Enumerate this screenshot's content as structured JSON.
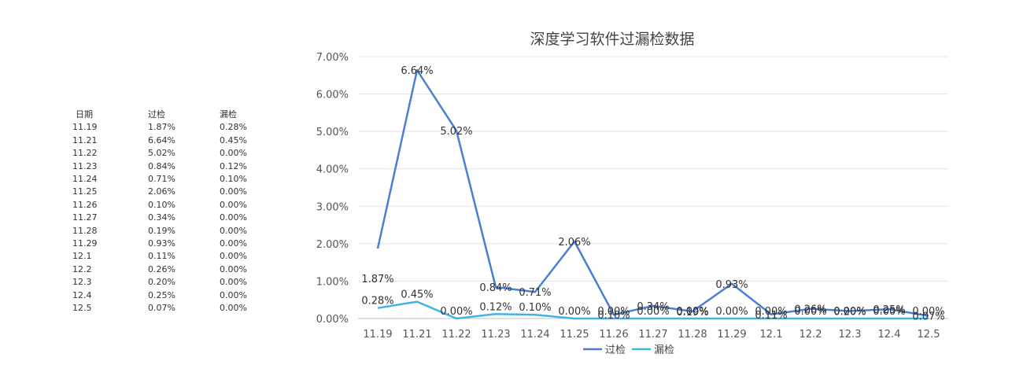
{
  "table": {
    "headers": [
      "日期",
      "过检",
      "漏检"
    ],
    "rows": [
      [
        "11.19",
        "1.87%",
        "0.28%"
      ],
      [
        "11.21",
        "6.64%",
        "0.45%"
      ],
      [
        "11.22",
        "5.02%",
        "0.00%"
      ],
      [
        "11.23",
        "0.84%",
        "0.12%"
      ],
      [
        "11.24",
        "0.71%",
        "0.10%"
      ],
      [
        "11.25",
        "2.06%",
        "0.00%"
      ],
      [
        "11.26",
        "0.10%",
        "0.00%"
      ],
      [
        "11.27",
        "0.34%",
        "0.00%"
      ],
      [
        "11.28",
        "0.19%",
        "0.00%"
      ],
      [
        "11.29",
        "0.93%",
        "0.00%"
      ],
      [
        "12.1",
        "0.11%",
        "0.00%"
      ],
      [
        "12.2",
        "0.26%",
        "0.00%"
      ],
      [
        "12.3",
        "0.20%",
        "0.00%"
      ],
      [
        "12.4",
        "0.25%",
        "0.00%"
      ],
      [
        "12.5",
        "0.07%",
        "0.00%"
      ]
    ]
  },
  "chart_data": {
    "type": "line",
    "title": "深度学习软件过漏检数据",
    "categories": [
      "11.19",
      "11.21",
      "11.22",
      "11.23",
      "11.24",
      "11.25",
      "11.26",
      "11.27",
      "11.28",
      "11.29",
      "12.1",
      "12.2",
      "12.3",
      "12.4",
      "12.5"
    ],
    "series": [
      {
        "name": "过检",
        "color": "#4a7fd4",
        "values": [
          1.87,
          6.64,
          5.02,
          0.84,
          0.71,
          2.06,
          0.1,
          0.34,
          0.19,
          0.93,
          0.11,
          0.26,
          0.2,
          0.25,
          0.07
        ],
        "labels": [
          "1.87%",
          "6.64%",
          "5.02%",
          "0.84%",
          "0.71%",
          "2.06%",
          "0.10%",
          "0.34%",
          "0.19%",
          "0.93%",
          "0.11%",
          "0.26%",
          "0.20%",
          "0.25%",
          "0.07%"
        ]
      },
      {
        "name": "漏检",
        "color": "#41b3e6",
        "values": [
          0.28,
          0.45,
          0.0,
          0.12,
          0.1,
          0.0,
          0.0,
          0.0,
          0.0,
          0.0,
          0.0,
          0.0,
          0.0,
          0.0,
          0.0
        ],
        "labels": [
          "0.28%",
          "0.45%",
          "0.00%",
          "0.12%",
          "0.10%",
          "0.00%",
          "0.00%",
          "0.00%",
          "0.00%",
          "0.00%",
          "0.00%",
          "0.00%",
          "0.00%",
          "0.00%",
          "0.00%"
        ]
      }
    ],
    "ylim": [
      0,
      7
    ],
    "yticks": [
      "0.00%",
      "1.00%",
      "2.00%",
      "3.00%",
      "4.00%",
      "5.00%",
      "6.00%",
      "7.00%"
    ],
    "grid": true,
    "legend": "bottom"
  }
}
